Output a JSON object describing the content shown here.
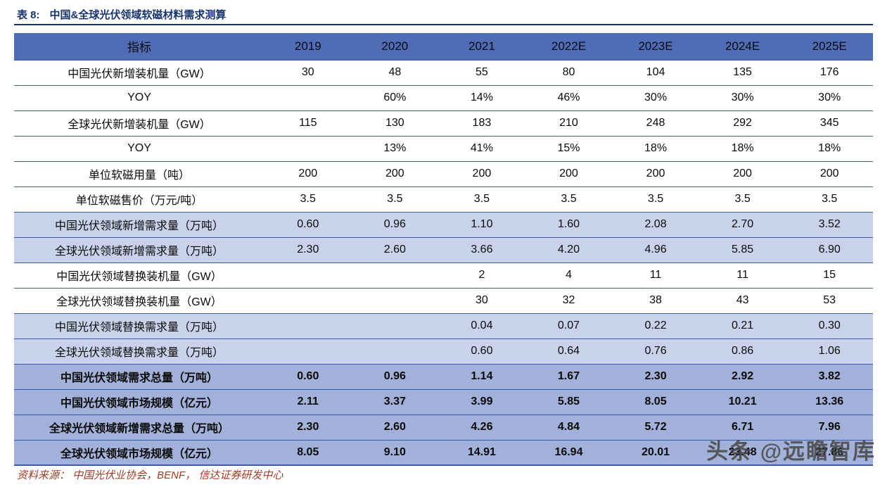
{
  "title": {
    "prefix": "表 8:",
    "text": "中国&全球光伏领域软磁材料需求测算"
  },
  "table": {
    "columns": [
      "指标",
      "2019",
      "2020",
      "2021",
      "2022E",
      "2023E",
      "2024E",
      "2025E"
    ],
    "rows": [
      {
        "label": "中国光伏新增装机量（GW）",
        "style": "plain",
        "values": [
          "30",
          "48",
          "55",
          "80",
          "104",
          "135",
          "176"
        ]
      },
      {
        "label": "YOY",
        "style": "plain",
        "values": [
          "",
          "60%",
          "14%",
          "46%",
          "30%",
          "30%",
          "30%"
        ]
      },
      {
        "label": "全球光伏新增装机量（GW）",
        "style": "plain",
        "values": [
          "115",
          "130",
          "183",
          "210",
          "248",
          "292",
          "345"
        ]
      },
      {
        "label": "YOY",
        "style": "plain",
        "values": [
          "",
          "13%",
          "41%",
          "15%",
          "18%",
          "18%",
          "18%"
        ]
      },
      {
        "label": "单位软磁用量（吨）",
        "style": "plain",
        "values": [
          "200",
          "200",
          "200",
          "200",
          "200",
          "200",
          "200"
        ]
      },
      {
        "label": "单位软磁售价（万元/吨）",
        "style": "plain",
        "values": [
          "3.5",
          "3.5",
          "3.5",
          "3.5",
          "3.5",
          "3.5",
          "3.5"
        ]
      },
      {
        "label": "中国光伏领域新增需求量（万吨）",
        "style": "light",
        "values": [
          "0.60",
          "0.96",
          "1.10",
          "1.60",
          "2.08",
          "2.70",
          "3.52"
        ]
      },
      {
        "label": "全球光伏领域新增需求量（万吨）",
        "style": "light",
        "values": [
          "2.30",
          "2.60",
          "3.66",
          "4.20",
          "4.96",
          "5.85",
          "6.90"
        ]
      },
      {
        "label": "中国光伏领域替换装机量（GW）",
        "style": "plain",
        "values": [
          "",
          "",
          "2",
          "4",
          "11",
          "11",
          "15"
        ]
      },
      {
        "label": "全球光伏领域替换装机量（GW）",
        "style": "plain",
        "values": [
          "",
          "",
          "30",
          "32",
          "38",
          "43",
          "53"
        ]
      },
      {
        "label": "中国光伏领域替换需求量（万吨）",
        "style": "light",
        "values": [
          "",
          "",
          "0.04",
          "0.07",
          "0.22",
          "0.21",
          "0.30"
        ]
      },
      {
        "label": "全球光伏领域替换需求量（万吨）",
        "style": "light",
        "values": [
          "",
          "",
          "0.60",
          "0.64",
          "0.76",
          "0.86",
          "1.06"
        ]
      },
      {
        "label": "中国光伏领域需求总量（万吨）",
        "style": "summary",
        "values": [
          "0.60",
          "0.96",
          "1.14",
          "1.67",
          "2.30",
          "2.92",
          "3.82"
        ]
      },
      {
        "label": "中国光伏领域市场规模（亿元）",
        "style": "summary",
        "values": [
          "2.11",
          "3.37",
          "3.99",
          "5.85",
          "8.05",
          "10.21",
          "13.36"
        ]
      },
      {
        "label": "全球光伏领域新增需求总量（万吨）",
        "style": "summary",
        "values": [
          "2.30",
          "2.60",
          "4.26",
          "4.84",
          "5.72",
          "6.71",
          "7.96"
        ]
      },
      {
        "label": "全球光伏领域市场规模（亿元）",
        "style": "summary",
        "values": [
          "8.05",
          "9.10",
          "14.91",
          "16.94",
          "20.01",
          "23.48",
          "27.86"
        ]
      }
    ]
  },
  "source": "资料来源： 中国光伏业协会，BENF， 信达证券研发中心",
  "watermark": "头条 @远瞻智库",
  "colors": {
    "title_color": "#17356b",
    "header_bg": "#4f6cb5",
    "light_bg": "#c8d2ea",
    "summary_bg": "#a1b1d9",
    "row_border": "#3a5ca8",
    "source_color": "#9e3b25"
  }
}
